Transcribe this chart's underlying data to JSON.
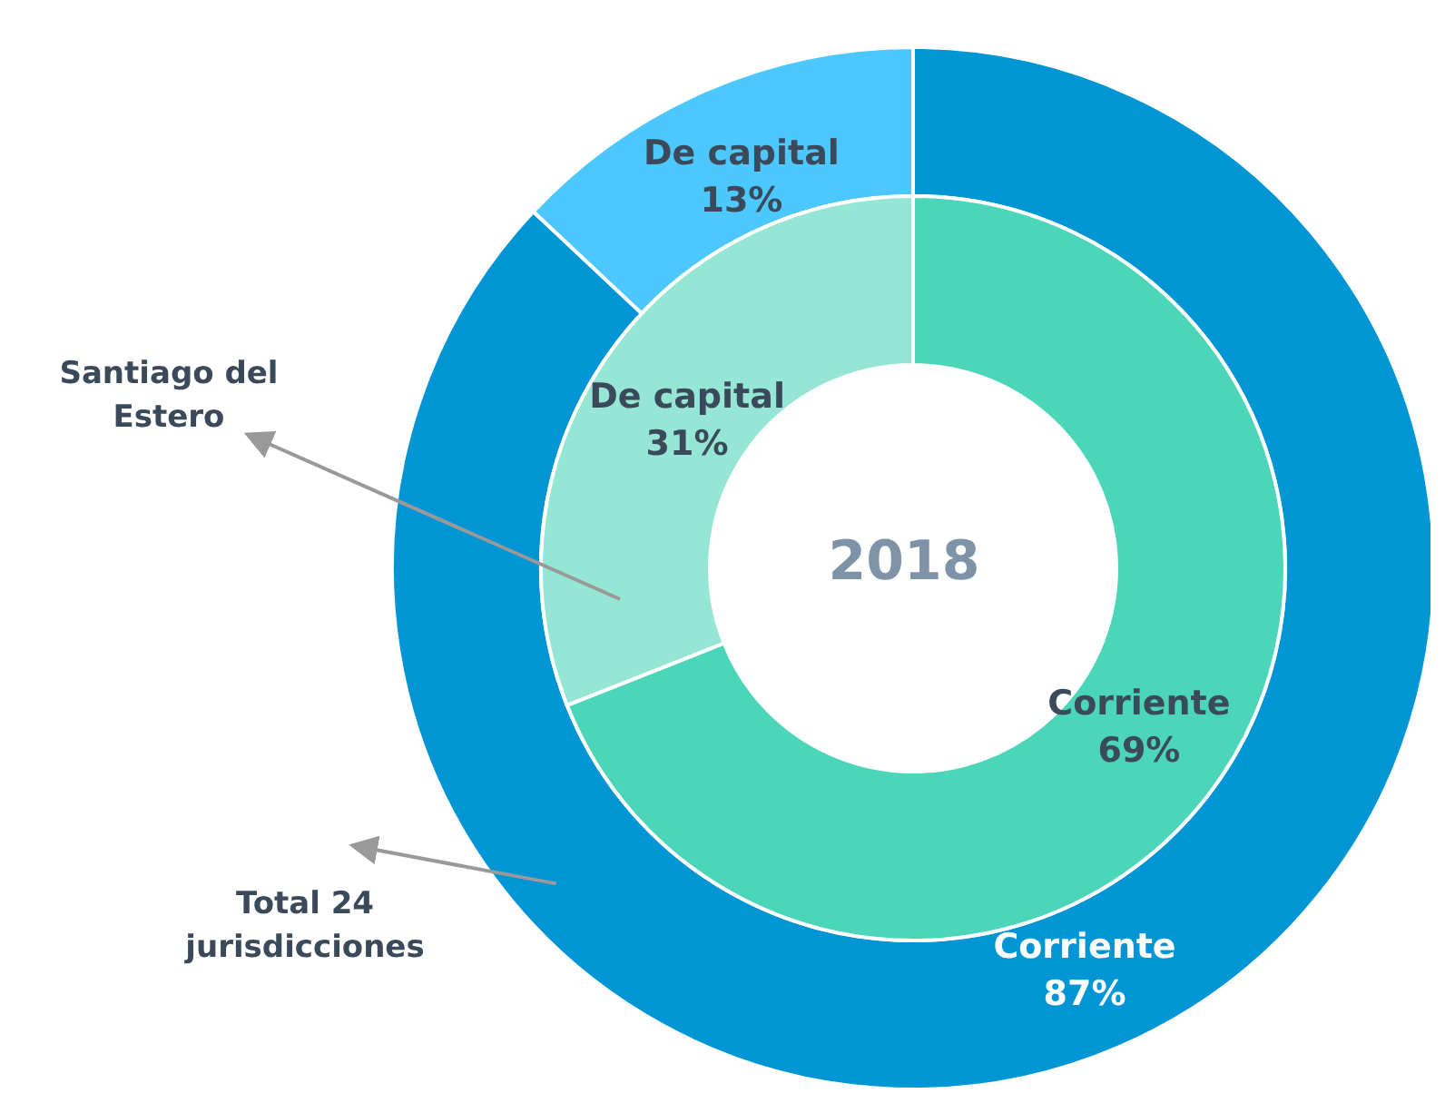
{
  "chart_data": {
    "type": "donut",
    "title": "2018",
    "categories": [
      "Corriente",
      "De capital"
    ],
    "series": [
      {
        "name": "Total 24 jurisdicciones",
        "values": [
          87,
          13
        ],
        "value_labels": [
          "87%",
          "13%"
        ],
        "colors": [
          "#0095d5",
          "#4dc8ff"
        ]
      },
      {
        "name": "Santiago del Estero",
        "values": [
          69,
          31
        ],
        "value_labels": [
          "69%",
          "31%"
        ],
        "colors": [
          "#4cd6b9",
          "#95e6d4"
        ]
      }
    ]
  }
}
